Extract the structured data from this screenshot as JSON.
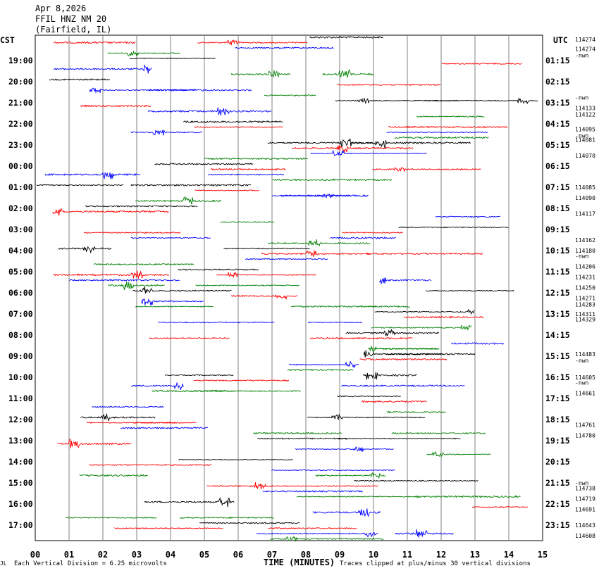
{
  "header": {
    "line1": "Apr 8,2026",
    "line2": "FFIL HNZ NM 20",
    "line3": "(Fairfield, IL)"
  },
  "left_axis_title": "CST",
  "right_axis_title": "UTC",
  "footer": {
    "scale_note": "Each Vertical Division =    6.25 microvolts",
    "x_title": "TIME (MINUTES)",
    "clip_note": "Traces clipped at plus/minus 30 vertical divisions",
    "corner_mark": "JL"
  },
  "chart_data": {
    "type": "line",
    "subtype": "helicorder",
    "xlabel": "TIME (MINUTES)",
    "xlim": [
      0,
      15
    ],
    "x_ticks": [
      "00",
      "01",
      "02",
      "03",
      "04",
      "05",
      "06",
      "07",
      "08",
      "09",
      "10",
      "11",
      "12",
      "13",
      "14",
      "15"
    ],
    "left_ticks": [
      "19:00",
      "20:00",
      "21:00",
      "22:00",
      "23:00",
      "00:00",
      "01:00",
      "02:00",
      "03:00",
      "04:00",
      "05:00",
      "06:00",
      "07:00",
      "08:00",
      "09:00",
      "10:00",
      "11:00",
      "12:00",
      "13:00",
      "14:00",
      "15:00",
      "16:00",
      "17:00"
    ],
    "right_ticks": [
      "01:15",
      "02:15",
      "03:15",
      "04:15",
      "05:15",
      "06:15",
      "07:15",
      "08:15",
      "09:15",
      "10:15",
      "11:15",
      "12:15",
      "13:15",
      "14:15",
      "15:15",
      "16:15",
      "17:15",
      "18:15",
      "19:15",
      "20:15",
      "21:15",
      "22:15",
      "23:15"
    ],
    "right_annotations": [
      {
        "row": 0,
        "text": "114274"
      },
      {
        "row": 0.45,
        "text": "114274"
      },
      {
        "row": 0.75,
        "text": "-nwn"
      },
      {
        "row": 2.75,
        "text": "-nwn"
      },
      {
        "row": 3.25,
        "text": "114133"
      },
      {
        "row": 3.55,
        "text": "114122"
      },
      {
        "row": 4.25,
        "text": "114095"
      },
      {
        "row": 4.55,
        "text": "-nwn"
      },
      {
        "row": 4.75,
        "text": "114081"
      },
      {
        "row": 5.5,
        "text": "114070"
      },
      {
        "row": 7.0,
        "text": "114085"
      },
      {
        "row": 7.5,
        "text": "114090"
      },
      {
        "row": 8.25,
        "text": "114117"
      },
      {
        "row": 9.5,
        "text": "114162"
      },
      {
        "row": 10.0,
        "text": "114180"
      },
      {
        "row": 10.25,
        "text": "-nwn"
      },
      {
        "row": 10.75,
        "text": "114206"
      },
      {
        "row": 11.25,
        "text": "114231"
      },
      {
        "row": 11.75,
        "text": "114250"
      },
      {
        "row": 12.25,
        "text": "114271"
      },
      {
        "row": 12.55,
        "text": "114283"
      },
      {
        "row": 13.0,
        "text": "114311"
      },
      {
        "row": 13.25,
        "text": "114329"
      },
      {
        "row": 14.9,
        "text": "114483"
      },
      {
        "row": 15.2,
        "text": "-nwn"
      },
      {
        "row": 16.0,
        "text": "114605"
      },
      {
        "row": 16.25,
        "text": "-nwn"
      },
      {
        "row": 16.75,
        "text": "114661"
      },
      {
        "row": 18.25,
        "text": "114761"
      },
      {
        "row": 18.75,
        "text": "114780"
      },
      {
        "row": 21.0,
        "text": "-nwn"
      },
      {
        "row": 21.25,
        "text": "114738"
      },
      {
        "row": 21.75,
        "text": "114719"
      },
      {
        "row": 22.25,
        "text": "114691"
      },
      {
        "row": 23.0,
        "text": "114643"
      },
      {
        "row": 23.5,
        "text": "114608"
      }
    ],
    "trace_colors": [
      "#000000",
      "#ff0000",
      "#0000ff",
      "#008000"
    ],
    "rows_per_label": 4,
    "total_rows": 96,
    "traces_shown": "partial (many lines have data gaps)",
    "clip_divisions": 30,
    "microvolts_per_division": 6.25
  }
}
